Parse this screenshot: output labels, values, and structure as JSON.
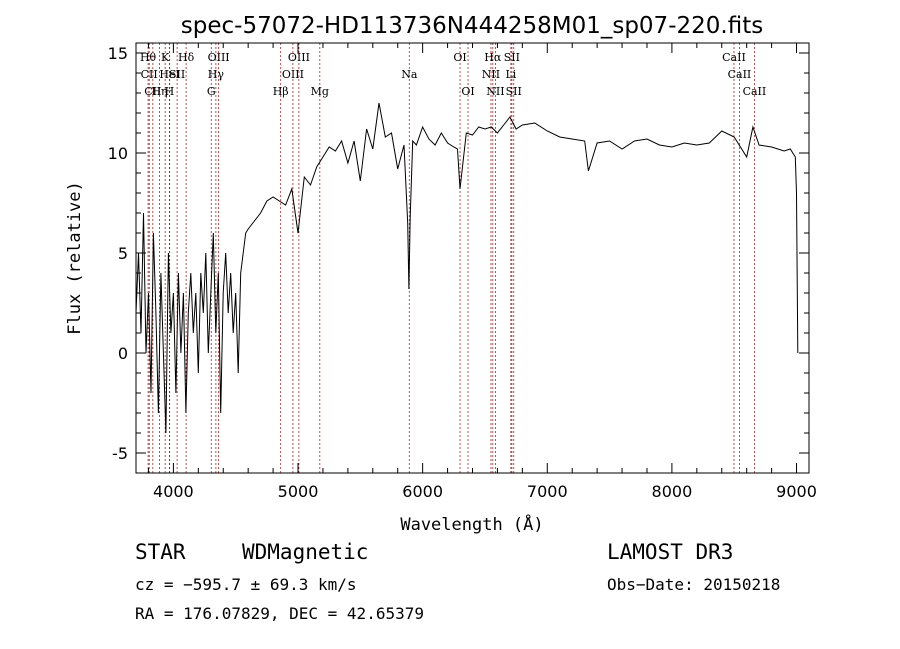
{
  "chart_data": {
    "type": "line",
    "title": "spec-57072-HD113736N444258M01_sp07-220.fits",
    "xlabel": "Wavelength (Å)",
    "ylabel": "Flux (relative)",
    "xlim": [
      3700,
      9100
    ],
    "ylim": [
      -6,
      15.5
    ],
    "xticks": [
      4000,
      5000,
      6000,
      7000,
      8000,
      9000
    ],
    "yticks": [
      -5,
      0,
      5,
      10,
      15
    ],
    "series": [
      {
        "name": "flux",
        "x": [
          3700,
          3720,
          3740,
          3760,
          3780,
          3800,
          3820,
          3840,
          3860,
          3880,
          3900,
          3920,
          3940,
          3960,
          3980,
          4000,
          4020,
          4040,
          4060,
          4080,
          4100,
          4120,
          4140,
          4160,
          4180,
          4200,
          4220,
          4240,
          4260,
          4280,
          4300,
          4320,
          4340,
          4360,
          4380,
          4400,
          4420,
          4440,
          4460,
          4480,
          4500,
          4520,
          4540,
          4560,
          4580,
          4600,
          4650,
          4700,
          4750,
          4800,
          4850,
          4900,
          4950,
          5000,
          5050,
          5100,
          5150,
          5200,
          5250,
          5300,
          5350,
          5400,
          5450,
          5500,
          5550,
          5600,
          5650,
          5700,
          5750,
          5800,
          5850,
          5880,
          5890,
          5900,
          5920,
          5950,
          6000,
          6050,
          6100,
          6150,
          6200,
          6250,
          6280,
          6300,
          6350,
          6400,
          6450,
          6500,
          6550,
          6600,
          6650,
          6700,
          6750,
          6800,
          6900,
          7000,
          7100,
          7200,
          7300,
          7330,
          7400,
          7500,
          7600,
          7700,
          7800,
          7900,
          8000,
          8100,
          8200,
          8300,
          8400,
          8500,
          8600,
          8650,
          8700,
          8800,
          8900,
          8950,
          8990,
          9000,
          9010
        ],
        "y": [
          2,
          5,
          1,
          7,
          0,
          3,
          -2,
          6,
          2,
          -3,
          4,
          0,
          -4,
          5,
          1,
          3,
          -2,
          4,
          0,
          3,
          -3,
          2,
          4,
          1,
          3,
          -1,
          4,
          2,
          5,
          0,
          3,
          6,
          1,
          4,
          -3,
          3,
          5,
          2,
          4,
          1,
          3,
          -1,
          4,
          5,
          6,
          6.2,
          6.6,
          7,
          7.6,
          7.8,
          7.6,
          7.4,
          8.2,
          6,
          8.8,
          8.4,
          9.3,
          9.8,
          10.3,
          10.1,
          10.6,
          9.5,
          10.6,
          8.6,
          11.2,
          10.2,
          12.5,
          10.8,
          11,
          9.2,
          10.4,
          6.5,
          3.2,
          6.8,
          10.6,
          10.4,
          11.3,
          10.7,
          10.4,
          11,
          10.5,
          10.3,
          10.2,
          8.2,
          11,
          10.9,
          11.3,
          11.2,
          11.3,
          11,
          11.4,
          11.8,
          11.2,
          11.4,
          11.5,
          11.1,
          10.8,
          10.7,
          10.6,
          9.1,
          10.5,
          10.6,
          10.2,
          10.6,
          10.7,
          10.4,
          10.3,
          10.5,
          10.4,
          10.5,
          11.1,
          10.8,
          9.8,
          11.3,
          10.4,
          10.3,
          10.1,
          10.2,
          9.8,
          8,
          0
        ]
      }
    ],
    "line_markers": [
      {
        "label": "Hθ",
        "x": 3797,
        "row": 1
      },
      {
        "label": "CII",
        "x": 3806,
        "row": 2
      },
      {
        "label": "CII",
        "x": 3835,
        "row": 3
      },
      {
        "label": "Hη",
        "x": 3889,
        "row": 3
      },
      {
        "label": "K",
        "x": 3934,
        "row": 1
      },
      {
        "label": "HeI",
        "x": 3970,
        "row": 2
      },
      {
        "label": "H",
        "x": 3968,
        "row": 3
      },
      {
        "label": "SII",
        "x": 4030,
        "row": 2
      },
      {
        "label": "Hδ",
        "x": 4102,
        "row": 1
      },
      {
        "label": "OIII",
        "x": 4363,
        "row": 1
      },
      {
        "label": "Hγ",
        "x": 4341,
        "row": 2
      },
      {
        "label": "G",
        "x": 4304,
        "row": 3
      },
      {
        "label": "OIII",
        "x": 5007,
        "row": 1
      },
      {
        "label": "OIII",
        "x": 4959,
        "row": 2
      },
      {
        "label": "Hβ",
        "x": 4861,
        "row": 3
      },
      {
        "label": "Mg",
        "x": 5175,
        "row": 3
      },
      {
        "label": "Na",
        "x": 5893,
        "row": 2
      },
      {
        "label": "OI",
        "x": 6300,
        "row": 1
      },
      {
        "label": "OI",
        "x": 6364,
        "row": 3
      },
      {
        "label": "Hα",
        "x": 6563,
        "row": 1
      },
      {
        "label": "NII",
        "x": 6548,
        "row": 2
      },
      {
        "label": "NII",
        "x": 6584,
        "row": 3
      },
      {
        "label": "SII",
        "x": 6716,
        "row": 1
      },
      {
        "label": "Li",
        "x": 6708,
        "row": 2
      },
      {
        "label": "SII",
        "x": 6731,
        "row": 3
      },
      {
        "label": "CaII",
        "x": 8498,
        "row": 1
      },
      {
        "label": "CaII",
        "x": 8542,
        "row": 2
      },
      {
        "label": "CaII",
        "x": 8662,
        "row": 3
      }
    ],
    "colors": {
      "spectrum": "#000000",
      "markers": "#aa2222",
      "axes": "#000000"
    },
    "grid": false
  },
  "info": {
    "class": "STAR",
    "subclass": "WDMagnetic",
    "survey": "LAMOST DR3",
    "cz": "cz = −595.7 ± 69.3 km/s",
    "obs_date": "Obs−Date: 20150218",
    "radec": "RA = 176.07829, DEC =  42.65379"
  }
}
